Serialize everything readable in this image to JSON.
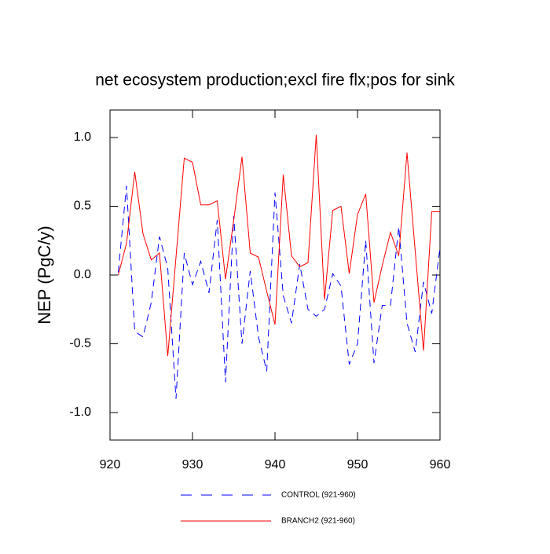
{
  "chart_data": {
    "type": "line",
    "title": "net ecosystem production;excl fire flx;pos for sink",
    "y_label": "NEP  (PgC/y)",
    "x": [
      921,
      922,
      923,
      924,
      925,
      926,
      927,
      928,
      929,
      930,
      931,
      932,
      933,
      934,
      935,
      936,
      937,
      938,
      939,
      940,
      941,
      942,
      943,
      944,
      945,
      946,
      947,
      948,
      949,
      950,
      951,
      952,
      953,
      954,
      955,
      956,
      957,
      958,
      959,
      960
    ],
    "series": [
      {
        "name": "CONTROL (921-960)",
        "color": "#0000ff",
        "line_style": "dashed",
        "values": [
          0.02,
          0.65,
          -0.41,
          -0.45,
          -0.2,
          0.28,
          0.05,
          -0.9,
          0.16,
          -0.07,
          0.1,
          -0.13,
          0.4,
          -0.78,
          0.43,
          -0.5,
          0.03,
          -0.45,
          -0.7,
          0.6,
          -0.15,
          -0.35,
          0.08,
          -0.25,
          -0.3,
          -0.25,
          0.01,
          -0.08,
          -0.65,
          -0.5,
          0.25,
          -0.64,
          -0.22,
          -0.22,
          0.35,
          -0.35,
          -0.56,
          -0.05,
          -0.28,
          0.2
        ]
      },
      {
        "name": "BRANCH2 (921-960)",
        "color": "#ff0000",
        "line_style": "solid",
        "values": [
          0.0,
          0.23,
          0.75,
          0.3,
          0.11,
          0.16,
          -0.59,
          0.13,
          0.85,
          0.82,
          0.51,
          0.51,
          0.54,
          -0.03,
          0.4,
          0.86,
          0.16,
          0.13,
          -0.12,
          -0.36,
          0.73,
          0.14,
          0.06,
          0.09,
          1.02,
          -0.18,
          0.47,
          0.5,
          0.01,
          0.44,
          0.59,
          -0.2,
          0.07,
          0.31,
          0.14,
          0.89,
          0.17,
          -0.55,
          0.46,
          0.46
        ]
      }
    ],
    "xlim": [
      920,
      960
    ],
    "xticks": [
      920,
      930,
      940,
      950,
      960
    ],
    "ylim": [
      -1.2,
      1.2
    ],
    "yticks": [
      {
        "value": -1,
        "label": "-1.0"
      },
      -0.5,
      {
        "value": 0,
        "label": "0.0"
      },
      0.5,
      {
        "value": 1,
        "label": "1.0"
      }
    ]
  }
}
